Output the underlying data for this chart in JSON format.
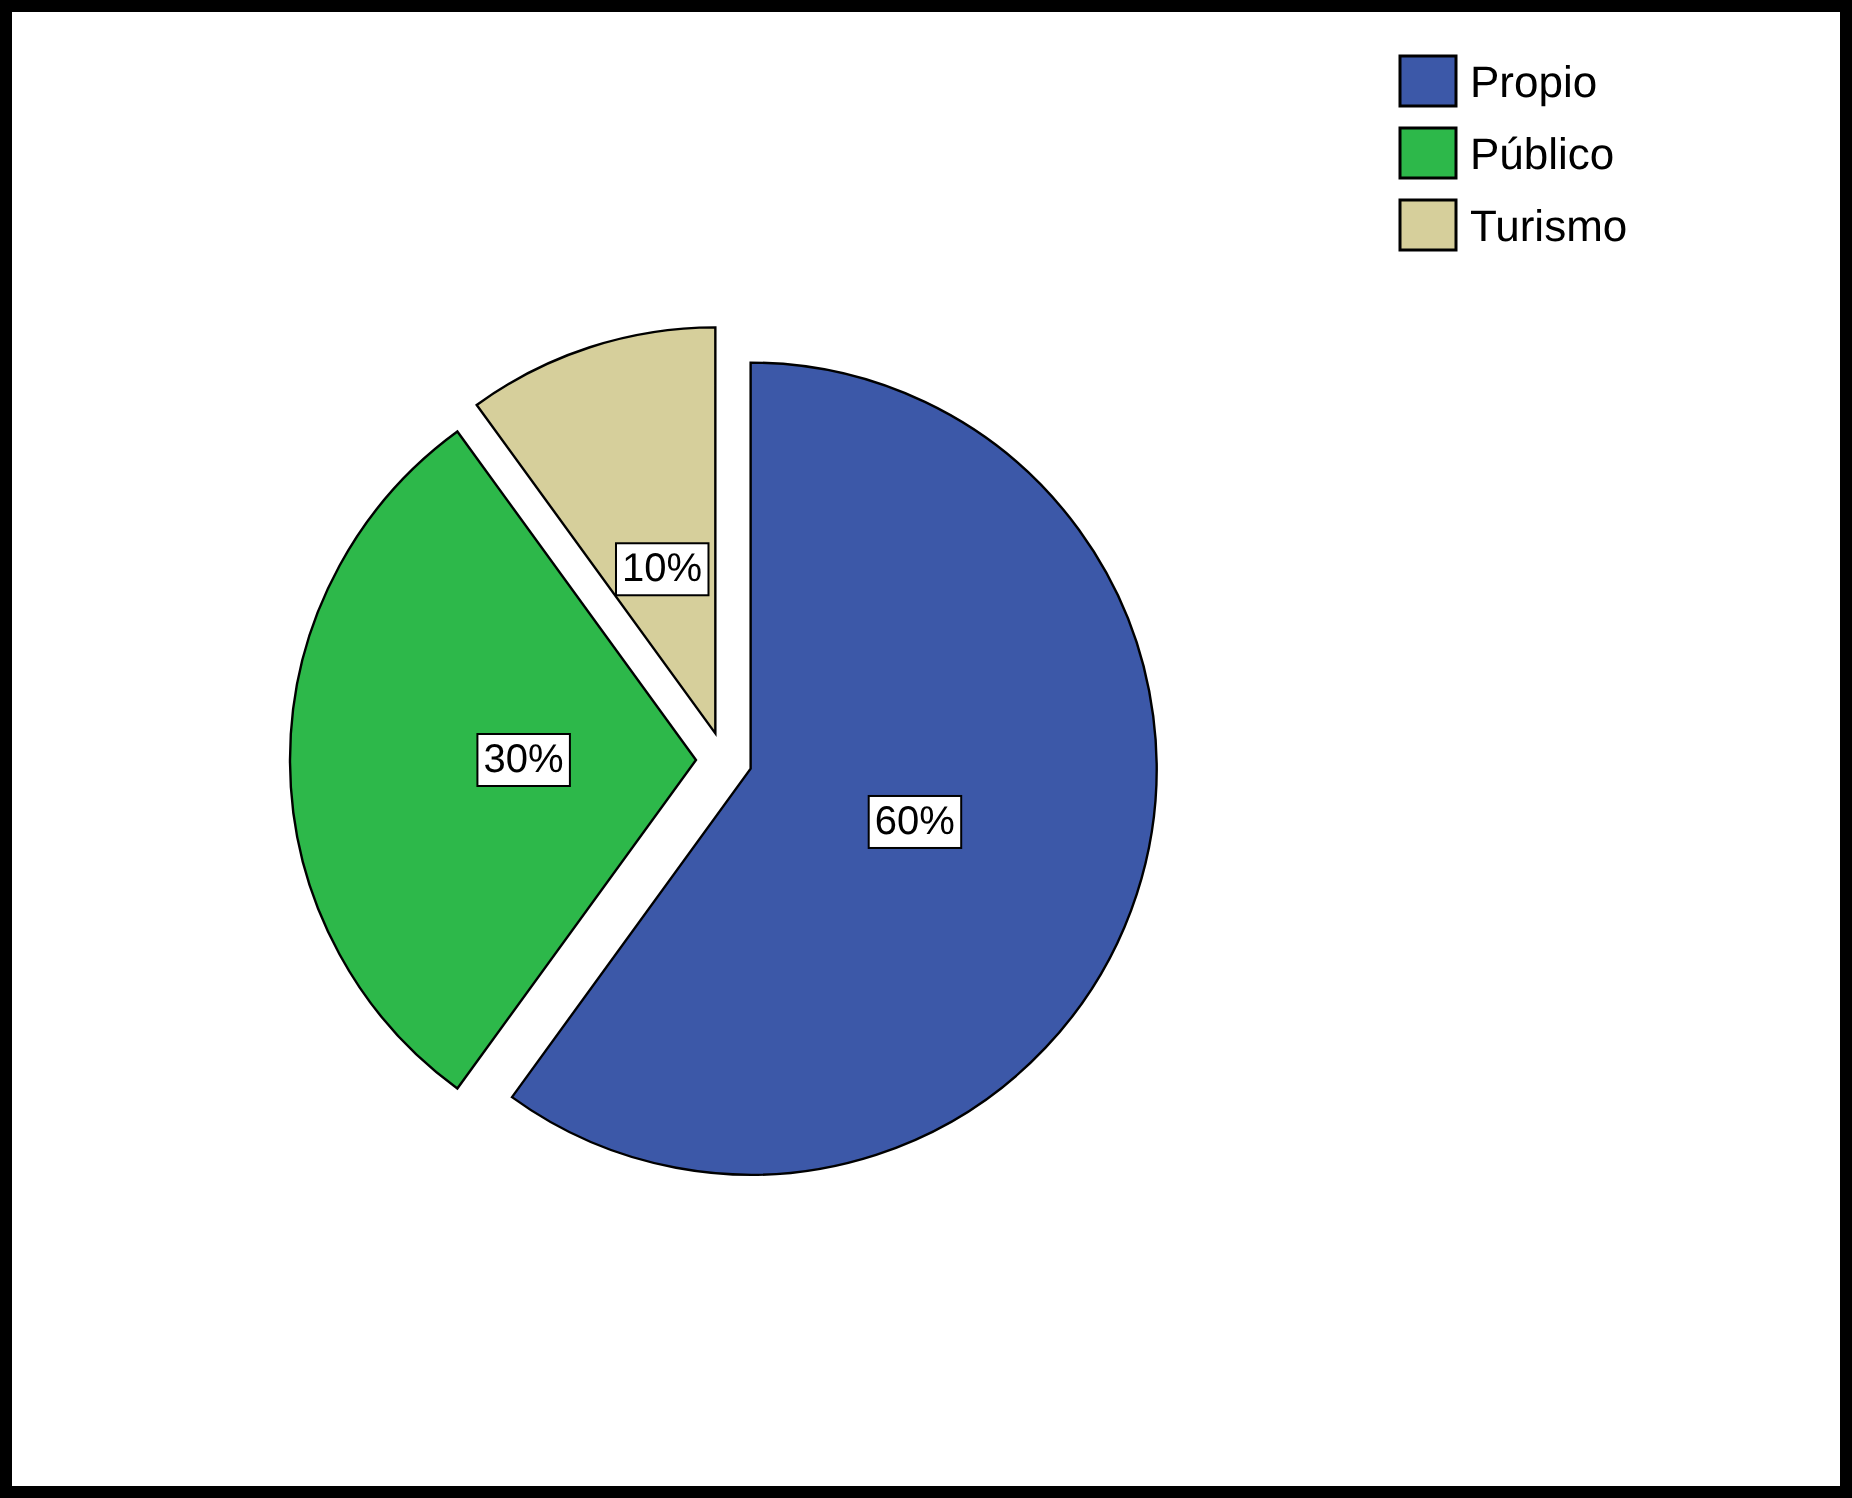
{
  "chart_data": {
    "type": "pie",
    "categories": [
      "Propio",
      "Público",
      "Turismo"
    ],
    "values": [
      60,
      30,
      10
    ],
    "colors": [
      "#3c58a8",
      "#2db84a",
      "#d6cf9b"
    ],
    "value_labels": [
      "60%",
      "30%",
      "10%"
    ],
    "legend": "top right"
  }
}
